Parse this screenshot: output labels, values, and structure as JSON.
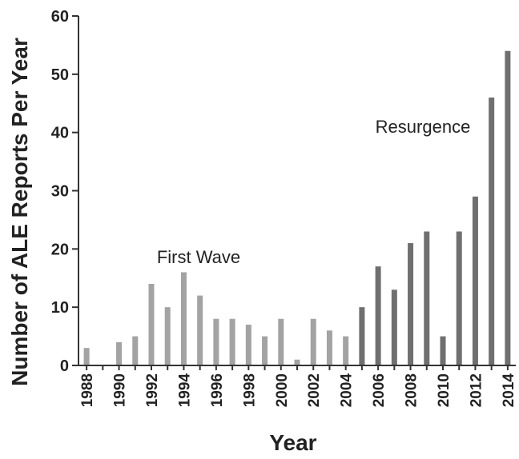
{
  "chart_data": {
    "type": "bar",
    "xlabel": "Year",
    "ylabel": "Number of ALE Reports Per Year",
    "ylim": [
      0,
      60
    ],
    "yticks": [
      0,
      10,
      20,
      30,
      40,
      50,
      60
    ],
    "categories": [
      "1988",
      "1989",
      "1990",
      "1991",
      "1992",
      "1993",
      "1994",
      "1995",
      "1996",
      "1997",
      "1998",
      "1999",
      "2000",
      "2001",
      "2002",
      "2003",
      "2004",
      "2005",
      "2006",
      "2007",
      "2008",
      "2009",
      "2010",
      "2011",
      "2012",
      "2013",
      "2014"
    ],
    "xtick_labels": [
      "1988",
      "1990",
      "1992",
      "1994",
      "1996",
      "1998",
      "2000",
      "2002",
      "2004",
      "2006",
      "2008",
      "2010",
      "2012",
      "2014"
    ],
    "values": [
      3,
      0,
      4,
      5,
      14,
      10,
      16,
      12,
      8,
      8,
      7,
      5,
      8,
      1,
      8,
      6,
      5,
      10,
      17,
      13,
      21,
      23,
      5,
      23,
      29,
      46,
      54
    ],
    "grid": false,
    "annotations": [
      {
        "text": "First Wave",
        "x": "1995",
        "y": 18.5
      },
      {
        "text": "Resurgence",
        "x": "2011",
        "y": 40
      }
    ],
    "colors": {
      "first_wave": "#a3a3a3",
      "resurgence": "#6f6f6f",
      "axis": "#333333"
    },
    "resurgence_from": "2005"
  }
}
